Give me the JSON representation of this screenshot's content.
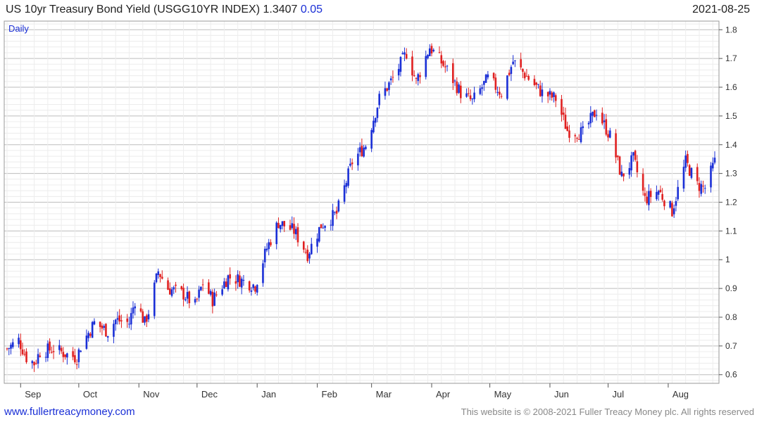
{
  "header": {
    "title": "US 10yr Treasury Bond Yield (USGG10YR INDEX) 1.3407",
    "change": "0.05",
    "date": "2021-08-25"
  },
  "footer": {
    "website": "www.fullertreacymoney.com",
    "copyright": "This website is © 2008-2021 Fuller Treacy Money plc. All rights reserved"
  },
  "colors": {
    "up": "#1a2fd6",
    "down": "#e02020",
    "grid": "#dcdcdc"
  },
  "chart_data": {
    "type": "candlestick",
    "frequency_label": "Daily",
    "y_axis": {
      "ylim": [
        0.57,
        1.83
      ],
      "ticks": [
        0.6,
        0.7,
        0.8,
        0.9,
        1.0,
        1.1,
        1.2,
        1.3,
        1.4,
        1.5,
        1.6,
        1.7,
        1.8
      ],
      "tick_labels": [
        "0.6",
        "0.7",
        "0.8",
        "0.9",
        "1",
        "1.1",
        "1.2",
        "1.3",
        "1.4",
        "1.5",
        "1.6",
        "1.7",
        "1.8"
      ],
      "position": "right"
    },
    "x_axis": {
      "start": "2020-08-25",
      "end": "2021-08-25",
      "months": [
        {
          "label": "Sep",
          "date": "2020-09-01"
        },
        {
          "label": "Oct",
          "date": "2020-10-01"
        },
        {
          "label": "Nov",
          "date": "2020-11-01"
        },
        {
          "label": "Dec",
          "date": "2020-12-01"
        },
        {
          "label": "Jan",
          "date": "2021-01-01"
        },
        {
          "label": "Feb",
          "date": "2021-02-01"
        },
        {
          "label": "Mar",
          "date": "2021-03-01"
        },
        {
          "label": "Apr",
          "date": "2021-04-01"
        },
        {
          "label": "May",
          "date": "2021-05-01"
        },
        {
          "label": "Jun",
          "date": "2021-06-01"
        },
        {
          "label": "Jul",
          "date": "2021-07-01"
        },
        {
          "label": "Aug",
          "date": "2021-08-01"
        }
      ]
    },
    "close_path": [
      [
        "2020-08-25",
        0.69
      ],
      [
        "2020-08-31",
        0.72
      ],
      [
        "2020-09-04",
        0.66
      ],
      [
        "2020-09-08",
        0.64
      ],
      [
        "2020-09-11",
        0.68
      ],
      [
        "2020-09-18",
        0.69
      ],
      [
        "2020-09-25",
        0.67
      ],
      [
        "2020-09-30",
        0.66
      ],
      [
        "2020-10-02",
        0.7
      ],
      [
        "2020-10-09",
        0.78
      ],
      [
        "2020-10-16",
        0.75
      ],
      [
        "2020-10-20",
        0.79
      ],
      [
        "2020-10-27",
        0.78
      ],
      [
        "2020-10-30",
        0.86
      ],
      [
        "2020-11-04",
        0.78
      ],
      [
        "2020-11-06",
        0.82
      ],
      [
        "2020-11-11",
        0.96
      ],
      [
        "2020-11-16",
        0.9
      ],
      [
        "2020-11-24",
        0.88
      ],
      [
        "2020-11-30",
        0.84
      ],
      [
        "2020-12-04",
        0.92
      ],
      [
        "2020-12-09",
        0.86
      ],
      [
        "2020-12-17",
        0.94
      ],
      [
        "2020-12-23",
        0.93
      ],
      [
        "2020-12-31",
        0.91
      ],
      [
        "2021-01-06",
        1.04
      ],
      [
        "2021-01-12",
        1.13
      ],
      [
        "2021-01-20",
        1.1
      ],
      [
        "2021-01-27",
        1.02
      ],
      [
        "2021-02-03",
        1.12
      ],
      [
        "2021-02-11",
        1.16
      ],
      [
        "2021-02-19",
        1.34
      ],
      [
        "2021-02-26",
        1.4
      ],
      [
        "2021-03-05",
        1.56
      ],
      [
        "2021-03-12",
        1.63
      ],
      [
        "2021-03-19",
        1.72
      ],
      [
        "2021-03-24",
        1.62
      ],
      [
        "2021-03-31",
        1.74
      ],
      [
        "2021-04-09",
        1.66
      ],
      [
        "2021-04-16",
        1.58
      ],
      [
        "2021-04-22",
        1.55
      ],
      [
        "2021-04-30",
        1.63
      ],
      [
        "2021-05-07",
        1.58
      ],
      [
        "2021-05-13",
        1.69
      ],
      [
        "2021-05-21",
        1.63
      ],
      [
        "2021-05-28",
        1.58
      ],
      [
        "2021-06-04",
        1.56
      ],
      [
        "2021-06-10",
        1.45
      ],
      [
        "2021-06-18",
        1.44
      ],
      [
        "2021-06-25",
        1.52
      ],
      [
        "2021-07-02",
        1.43
      ],
      [
        "2021-07-08",
        1.29
      ],
      [
        "2021-07-14",
        1.35
      ],
      [
        "2021-07-20",
        1.21
      ],
      [
        "2021-07-27",
        1.24
      ],
      [
        "2021-08-03",
        1.17
      ],
      [
        "2021-08-10",
        1.34
      ],
      [
        "2021-08-16",
        1.26
      ],
      [
        "2021-08-20",
        1.25
      ],
      [
        "2021-08-25",
        1.34
      ]
    ]
  }
}
